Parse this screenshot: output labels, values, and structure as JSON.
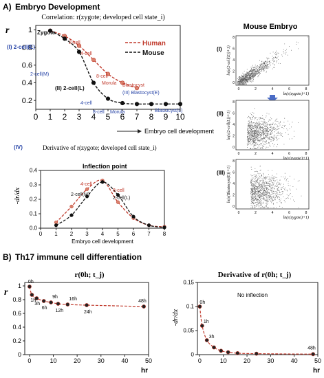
{
  "sections": {
    "a_label": "A)",
    "a_title": "Embryo Development",
    "b_label": "B)",
    "b_title": "Th17 immune cell differentiation"
  },
  "colors": {
    "human": "#c0392b",
    "mouse": "#111111",
    "blue_label": "#2a47a8",
    "arrow": "#4a6cc6"
  },
  "chart_data": [
    {
      "id": "correlation",
      "type": "line",
      "title": "Correlation: r(zygote; developed cell state_i)",
      "ylabel": "r",
      "xlabel": "Embryo cell development",
      "xlim": [
        0,
        10
      ],
      "ylim": [
        0.1,
        1.05
      ],
      "xticks": [
        0,
        1,
        2,
        3,
        4,
        5,
        6,
        7,
        8,
        9,
        10
      ],
      "yticks": [
        0.2,
        0.4,
        0.6,
        0.8,
        1.0
      ],
      "legend": [
        "Human",
        "Mouse"
      ],
      "series": [
        {
          "name": "Human",
          "color": "#c0392b",
          "x": [
            1,
            2,
            3,
            4,
            5,
            6,
            7
          ],
          "y": [
            0.99,
            0.93,
            0.82,
            0.66,
            0.5,
            0.4,
            0.34
          ],
          "point_labels": [
            "Zygote",
            "2-cell",
            "4-cell",
            "",
            "8-cell",
            "Morula",
            "Blastocyst"
          ]
        },
        {
          "name": "Mouse",
          "color": "#111111",
          "x": [
            1,
            2,
            3,
            4,
            5,
            6,
            7,
            8,
            9,
            10
          ],
          "y": [
            0.99,
            0.9,
            0.75,
            0.4,
            0.22,
            0.17,
            0.16,
            0.16,
            0.16,
            0.16
          ],
          "point_labels": [
            "Zygote",
            "2-cell(E)",
            "2-cell(M)",
            "2-cell(L)",
            "4-cell",
            "8-cell",
            "Morula",
            "Blastocyst(E)",
            "Blastocyst(L)",
            ""
          ]
        }
      ],
      "annotations": [
        "(I) 2-cell(E)",
        "(II) 2-cell(L)",
        "(III) Blastocyst(E)",
        "Zygote",
        "2-cell(M)",
        "4-cell",
        "8-cell",
        "Morula",
        "Blastocyst(L)",
        "2-cell",
        "4-cell",
        "8-cell",
        "Morula",
        "Blastocyst"
      ]
    },
    {
      "id": "derivative",
      "type": "line",
      "title": "Derivative of r(zygote; developed cell state_i)",
      "panel_label": "(IV)",
      "ylabel": "-dr/dx",
      "xlabel": "Embryo cell development",
      "xlim": [
        0,
        8
      ],
      "ylim": [
        0,
        0.4
      ],
      "xticks": [
        0,
        1,
        2,
        3,
        4,
        5,
        6,
        7,
        8
      ],
      "yticks": [
        0.0,
        0.1,
        0.2,
        0.3,
        0.4
      ],
      "inner_title": "Inflection point",
      "series": [
        {
          "name": "Human",
          "color": "#c0392b",
          "x": [
            1,
            2,
            3,
            4,
            5,
            6,
            7,
            8
          ],
          "y": [
            0.04,
            0.15,
            0.27,
            0.33,
            0.18,
            0.07,
            0.02,
            0.01
          ]
        },
        {
          "name": "Mouse",
          "color": "#111111",
          "x": [
            1,
            2,
            3,
            4,
            5,
            6,
            7,
            8
          ],
          "y": [
            0.02,
            0.09,
            0.22,
            0.32,
            0.23,
            0.08,
            0.02,
            0.005
          ]
        }
      ],
      "annotations": [
        "4-cell",
        "8-cell",
        "2-cell(M)",
        "2-cell(L)"
      ]
    },
    {
      "id": "th17_r",
      "type": "line",
      "title": "r(0h; t_j)",
      "ylabel": "r",
      "xlabel": "hr",
      "xlim": [
        -2,
        50
      ],
      "ylim": [
        0,
        1.05
      ],
      "xticks": [
        0,
        10,
        20,
        30,
        40,
        50
      ],
      "yticks": [
        0.0,
        0.2,
        0.4,
        0.6,
        0.8,
        1.0
      ],
      "series": [
        {
          "name": "r",
          "color": "#c0392b",
          "x": [
            0,
            1,
            3,
            6,
            9,
            12,
            16,
            24,
            48
          ],
          "y": [
            0.99,
            0.87,
            0.82,
            0.78,
            0.76,
            0.74,
            0.73,
            0.72,
            0.7
          ],
          "point_labels": [
            "0h",
            "1h",
            "3h",
            "6h",
            "9h",
            "12h",
            "16h",
            "24h",
            "48h"
          ]
        }
      ]
    },
    {
      "id": "th17_deriv",
      "type": "line",
      "title": "Derivative of r(0h; t_j)",
      "ylabel": "-dr/dx",
      "xlabel": "hr",
      "xlim": [
        -1,
        50
      ],
      "ylim": [
        0,
        0.15
      ],
      "xticks": [
        0,
        10,
        20,
        30,
        40,
        50
      ],
      "yticks": [
        0.0,
        0.05,
        0.1,
        0.15
      ],
      "inner_title": "No inflection",
      "series": [
        {
          "name": "-dr/dx",
          "color": "#c0392b",
          "x": [
            0,
            1,
            3,
            6,
            9,
            12,
            16,
            24,
            48
          ],
          "y": [
            0.1,
            0.06,
            0.03,
            0.015,
            0.008,
            0.005,
            0.003,
            0.002,
            0.001
          ],
          "point_labels": [
            "0h",
            "1h",
            "3h",
            "",
            "",
            "",
            "",
            "",
            "48h"
          ]
        }
      ]
    }
  ],
  "mouse_embryo": {
    "title": "Mouse Embryo",
    "panels": [
      {
        "label": "(I)",
        "xlabel": "ln(ε(zygote)+1)",
        "ylabel": "ln(ε(2-cell(E))+1)",
        "xticks": [
          "0",
          "2",
          "4",
          "6",
          "8"
        ],
        "yticks": [
          "0",
          "2",
          "4",
          "6",
          "8"
        ]
      },
      {
        "label": "(II)",
        "xlabel": "ln(ε(zygote)+1)",
        "ylabel": "ln(ε(2-cell(L))+1)",
        "xticks": [
          "0",
          "2",
          "4",
          "6",
          "8"
        ],
        "yticks": [
          "0",
          "2",
          "4",
          "6",
          "8"
        ]
      },
      {
        "label": "(III)",
        "xlabel": "ln(ε(zygote)+1)",
        "ylabel": "ln(ε(Blastocyst(E))+1)",
        "xticks": [
          "0",
          "2",
          "4",
          "6",
          "8"
        ],
        "yticks": [
          "0",
          "2",
          "4",
          "6",
          "8"
        ]
      }
    ]
  }
}
